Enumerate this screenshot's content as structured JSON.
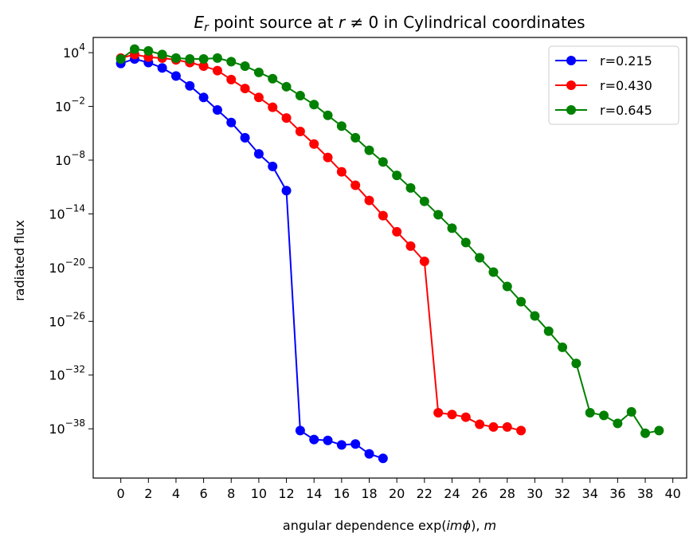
{
  "chart_data": {
    "type": "line",
    "title": {
      "prefix_italic": "E",
      "prefix_sub": "r",
      "middle": " point source at ",
      "var_italic": "r",
      "rest": " ≠ 0 in Cylindrical coordinates"
    },
    "xlabel": {
      "before": "angular dependence exp(",
      "italic": "imϕ",
      "after": "), ",
      "italic2": "m"
    },
    "ylabel": "radiated flux",
    "y_scale": "log",
    "x_range": [
      -2,
      41
    ],
    "y_log_range": [
      -43.5,
      5.7
    ],
    "x_ticks": [
      "0",
      "2",
      "4",
      "6",
      "8",
      "10",
      "12",
      "14",
      "16",
      "18",
      "20",
      "22",
      "24",
      "26",
      "28",
      "30",
      "32",
      "34",
      "36",
      "38",
      "40"
    ],
    "y_ticks": [
      {
        "base": "10",
        "exp": "4",
        "log": 4
      },
      {
        "base": "10",
        "exp": "−2",
        "log": -2
      },
      {
        "base": "10",
        "exp": "−8",
        "log": -8
      },
      {
        "base": "10",
        "exp": "−14",
        "log": -14
      },
      {
        "base": "10",
        "exp": "−20",
        "log": -20
      },
      {
        "base": "10",
        "exp": "−26",
        "log": -26
      },
      {
        "base": "10",
        "exp": "−32",
        "log": -32
      },
      {
        "base": "10",
        "exp": "−38",
        "log": -38
      }
    ],
    "grid": false,
    "legend_position": "top-right",
    "series": [
      {
        "name": "r=0.215",
        "color": "#0000ff",
        "x": [
          0,
          1,
          2,
          3,
          4,
          5,
          6,
          7,
          8,
          9,
          10,
          11,
          12,
          13,
          14,
          15,
          16,
          17,
          18,
          19
        ],
        "log10_y": [
          2.8,
          3.3,
          2.9,
          2.3,
          1.4,
          0.3,
          -1.0,
          -2.4,
          -3.8,
          -5.5,
          -7.3,
          -8.7,
          -11.4,
          -38.2,
          -39.2,
          -39.3,
          -39.8,
          -39.7,
          -40.8,
          -41.3
        ]
      },
      {
        "name": "r=0.430",
        "color": "#ff0000",
        "x": [
          0,
          1,
          2,
          3,
          4,
          5,
          6,
          7,
          8,
          9,
          10,
          11,
          12,
          13,
          14,
          15,
          16,
          17,
          18,
          19,
          20,
          21,
          22,
          23,
          24,
          25,
          26,
          27,
          28,
          29
        ],
        "log10_y": [
          3.4,
          3.8,
          3.5,
          3.4,
          3.2,
          2.9,
          2.5,
          2.0,
          1.0,
          0.0,
          -1.0,
          -2.1,
          -3.3,
          -4.8,
          -6.2,
          -7.7,
          -9.3,
          -10.8,
          -12.5,
          -14.2,
          -16.0,
          -17.6,
          -19.3,
          -36.2,
          -36.4,
          -36.7,
          -37.5,
          -37.8,
          -37.8,
          -38.2
        ]
      },
      {
        "name": "r=0.645",
        "color": "#008000",
        "x": [
          0,
          1,
          2,
          3,
          4,
          5,
          6,
          7,
          8,
          9,
          10,
          11,
          12,
          13,
          14,
          15,
          16,
          17,
          18,
          19,
          20,
          21,
          22,
          23,
          24,
          25,
          26,
          27,
          28,
          29,
          30,
          31,
          32,
          33,
          34,
          35,
          36,
          37,
          38,
          39
        ],
        "log10_y": [
          3.3,
          4.4,
          4.2,
          3.8,
          3.4,
          3.3,
          3.3,
          3.4,
          3.0,
          2.5,
          1.8,
          1.1,
          0.2,
          -0.8,
          -1.8,
          -3.0,
          -4.2,
          -5.5,
          -6.9,
          -8.2,
          -9.7,
          -11.1,
          -12.6,
          -14.1,
          -15.6,
          -17.2,
          -18.9,
          -20.5,
          -22.1,
          -23.8,
          -25.4,
          -27.1,
          -28.9,
          -30.7,
          -36.2,
          -36.5,
          -37.4,
          -36.1,
          -38.5,
          -38.2
        ]
      }
    ]
  }
}
